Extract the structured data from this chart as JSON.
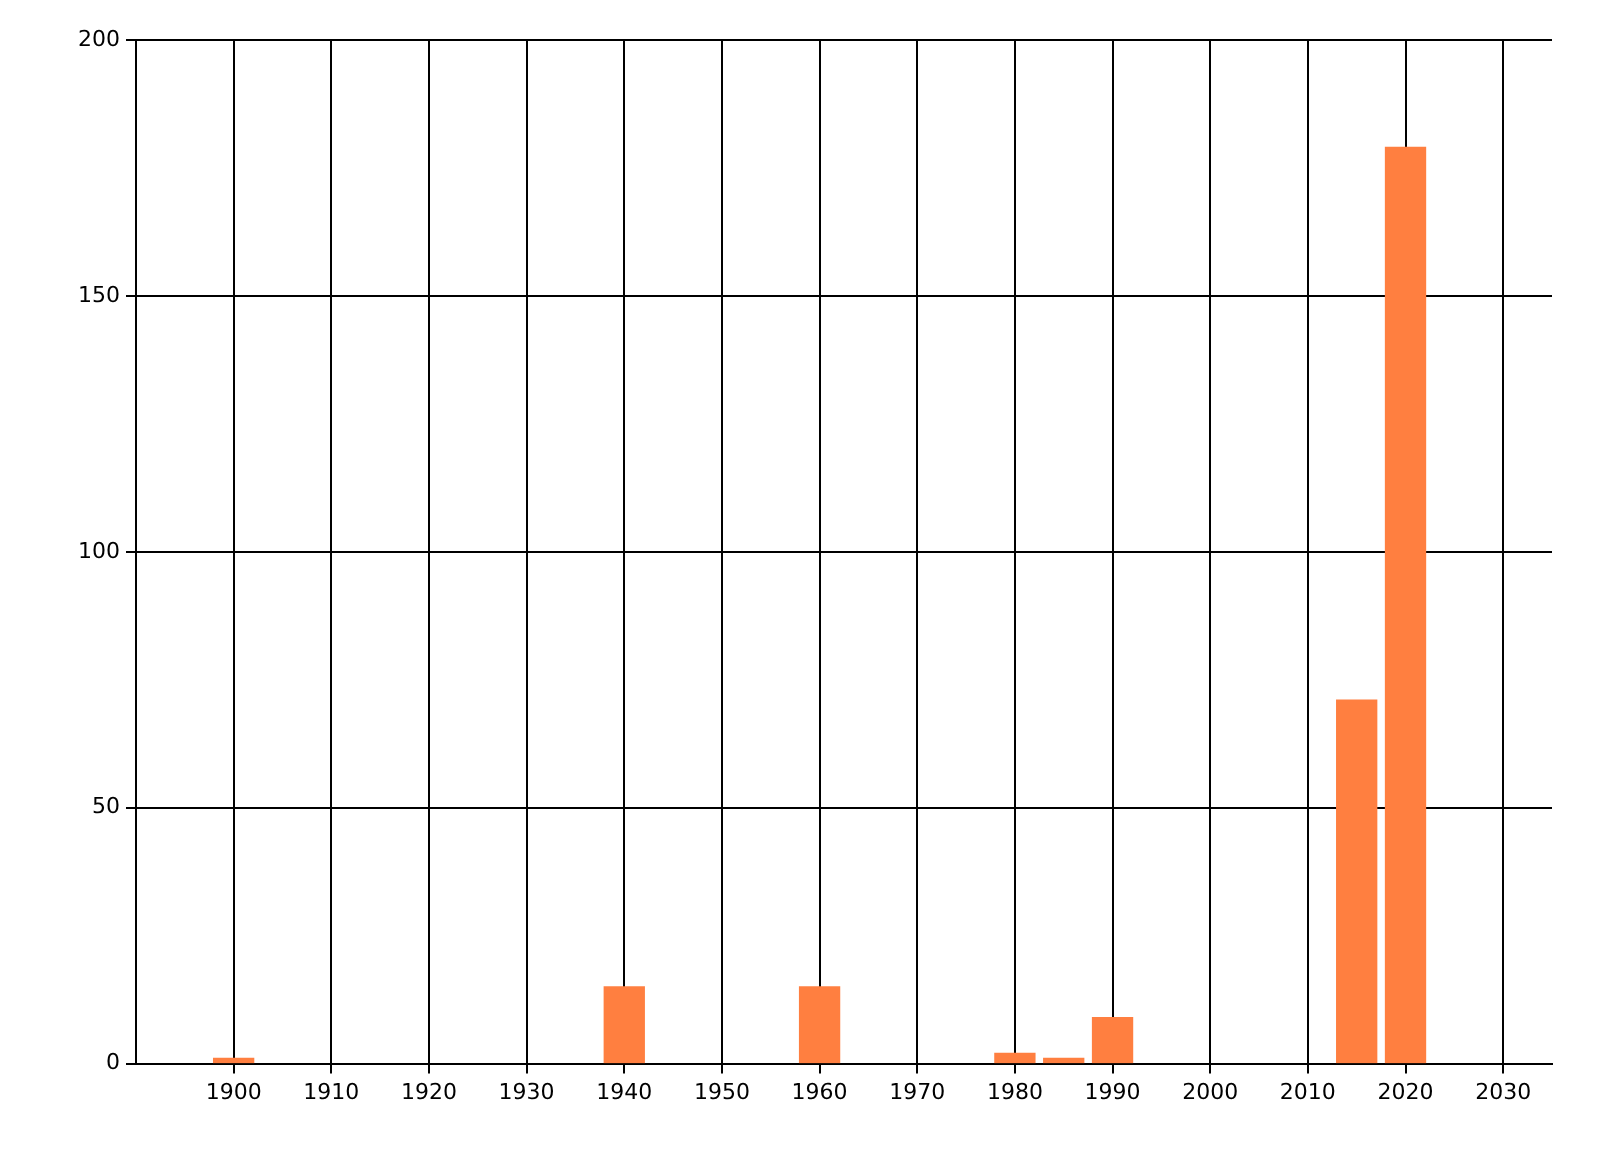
{
  "chart_data": {
    "type": "bar",
    "x": [
      1900,
      1940,
      1960,
      1980,
      1985,
      1990,
      2015,
      2020
    ],
    "values": [
      1,
      15,
      15,
      2,
      1,
      9,
      71,
      179
    ],
    "color": "#ff7f40",
    "xlim": [
      1890,
      2035
    ],
    "xticks": [
      1900,
      1910,
      1920,
      1930,
      1940,
      1950,
      1960,
      1970,
      1980,
      1990,
      2000,
      2010,
      2020,
      2030
    ],
    "ylim": [
      0,
      200
    ],
    "yticks": [
      0,
      50,
      100,
      150,
      200
    ],
    "grid": true,
    "legend": false
  }
}
